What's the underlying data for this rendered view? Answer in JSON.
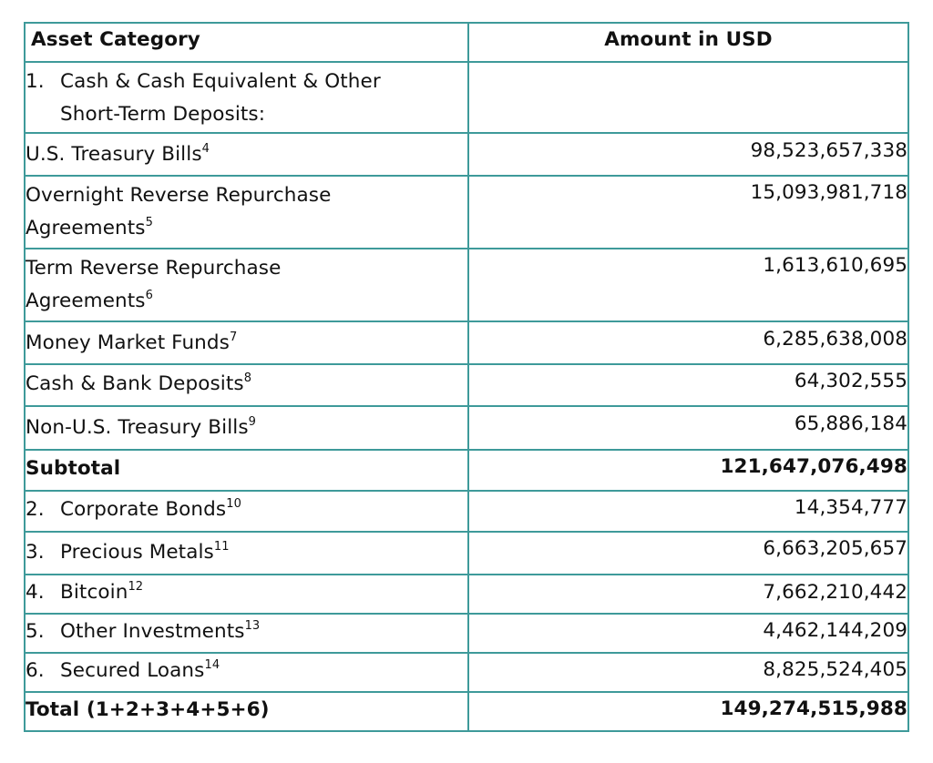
{
  "table": {
    "header": {
      "category": "Asset Category",
      "amount": "Amount in USD"
    },
    "section1": {
      "number": "1.",
      "line1": "Cash & Cash Equivalent & Other",
      "line2": "Short-Term Deposits:"
    },
    "sub_items": [
      {
        "label_line1": "U.S. Treasury Bills",
        "label_line2": "",
        "footnote": "4",
        "amount": "98,523,657,338"
      },
      {
        "label_line1": "Overnight Reverse Repurchase",
        "label_line2": "Agreements",
        "footnote": "5",
        "amount": "15,093,981,718"
      },
      {
        "label_line1": "Term Reverse Repurchase",
        "label_line2": "Agreements",
        "footnote": "6",
        "amount": "1,613,610,695"
      },
      {
        "label_line1": "Money Market Funds",
        "label_line2": "",
        "footnote": "7",
        "amount": "6,285,638,008"
      },
      {
        "label_line1": "Cash & Bank Deposits",
        "label_line2": "",
        "footnote": "8",
        "amount": "64,302,555"
      },
      {
        "label_line1": "Non-U.S. Treasury Bills",
        "label_line2": "",
        "footnote": "9",
        "amount": "65,886,184"
      }
    ],
    "subtotal": {
      "label": "Subtotal",
      "amount": "121,647,076,498"
    },
    "items": [
      {
        "number": "2.",
        "label": "Corporate Bonds",
        "footnote": "10",
        "amount": "14,354,777"
      },
      {
        "number": "3.",
        "label": "Precious Metals",
        "footnote": "11",
        "amount": "6,663,205,657"
      },
      {
        "number": "4.",
        "label": "Bitcoin",
        "footnote": "12",
        "amount": "7,662,210,442"
      },
      {
        "number": "5.",
        "label": "Other Investments",
        "footnote": "13",
        "amount": "4,462,144,209"
      },
      {
        "number": "6.",
        "label": "Secured Loans",
        "footnote": "14",
        "amount": "8,825,524,405"
      }
    ],
    "total": {
      "label": "Total (1+2+3+4+5+6)",
      "amount": "149,274,515,988"
    }
  },
  "colors": {
    "border": "#3e9a9a",
    "text": "#111111",
    "background": "#ffffff"
  }
}
